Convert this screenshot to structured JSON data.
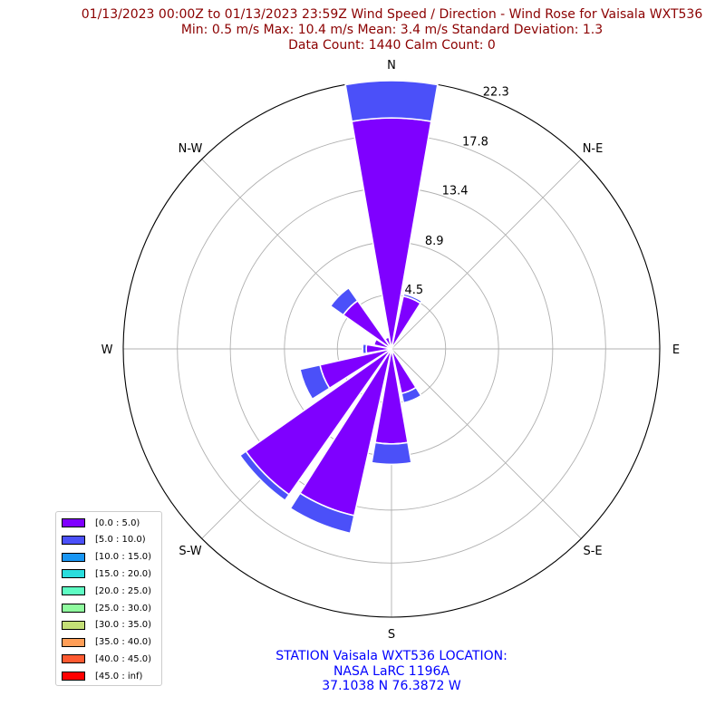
{
  "title": {
    "line1": "01/13/2023 00:00Z to 01/13/2023 23:59Z Wind Speed / Direction - Wind Rose for Vaisala WXT536",
    "line2": "Min: 0.5 m/s   Max: 10.4 m/s   Mean: 3.4 m/s  Standard Deviation: 1.3",
    "line3": "Data Count: 1440  Calm Count:  0"
  },
  "station": {
    "line1": "STATION Vaisala WXT536 LOCATION:",
    "line2": "NASA LaRC 1196A",
    "line3": "37.1038 N 76.3872 W"
  },
  "chart_data": {
    "type": "wind-rose",
    "directions": [
      "N",
      "NNE",
      "NE",
      "ENE",
      "E",
      "ESE",
      "SE",
      "SSE",
      "S",
      "SSW",
      "SW",
      "WSW",
      "W",
      "WNW",
      "NW",
      "NNW"
    ],
    "compass_labels": [
      "N",
      "N-E",
      "E",
      "S-E",
      "S",
      "S-W",
      "W",
      "N-W"
    ],
    "radial_ticks": [
      "4.5",
      "8.9",
      "13.4",
      "17.8",
      "22.3"
    ],
    "r_max": 22.3,
    "series": [
      {
        "name": "[0.0 : 5.0)",
        "color": "#7f00ff",
        "values": [
          19.2,
          4.5,
          0,
          0,
          0,
          0,
          0,
          3.8,
          7.9,
          14.2,
          14.8,
          6.1,
          2.1,
          1.5,
          4.9,
          1.0
        ]
      },
      {
        "name": "[5.0 : 10.0)",
        "color": "#4b50f9",
        "values": [
          3.1,
          0.2,
          0,
          0,
          0,
          0,
          0,
          0.8,
          1.7,
          1.5,
          0.6,
          1.7,
          0.3,
          0,
          1.3,
          0
        ]
      },
      {
        "name": "[10.0 : 15.0)",
        "color": "#1996f3",
        "values": [
          0,
          0,
          0,
          0,
          0,
          0,
          0,
          0,
          0,
          0,
          0,
          0,
          0,
          0,
          0,
          0
        ]
      },
      {
        "name": "[15.0 : 20.0)",
        "color": "#2adddd",
        "values": [
          0,
          0,
          0,
          0,
          0,
          0,
          0,
          0,
          0,
          0,
          0,
          0,
          0,
          0,
          0,
          0
        ]
      },
      {
        "name": "[20.0 : 25.0)",
        "color": "#5efcc3",
        "values": [
          0,
          0,
          0,
          0,
          0,
          0,
          0,
          0,
          0,
          0,
          0,
          0,
          0,
          0,
          0,
          0
        ]
      },
      {
        "name": "[25.0 : 30.0)",
        "color": "#8ffb9e",
        "values": [
          0,
          0,
          0,
          0,
          0,
          0,
          0,
          0,
          0,
          0,
          0,
          0,
          0,
          0,
          0,
          0
        ]
      },
      {
        "name": "[30.0 : 35.0)",
        "color": "#c4df77",
        "values": [
          0,
          0,
          0,
          0,
          0,
          0,
          0,
          0,
          0,
          0,
          0,
          0,
          0,
          0,
          0,
          0
        ]
      },
      {
        "name": "[35.0 : 40.0)",
        "color": "#ff9e57",
        "values": [
          0,
          0,
          0,
          0,
          0,
          0,
          0,
          0,
          0,
          0,
          0,
          0,
          0,
          0,
          0,
          0
        ]
      },
      {
        "name": "[40.0 : 45.0)",
        "color": "#ff5a31",
        "values": [
          0,
          0,
          0,
          0,
          0,
          0,
          0,
          0,
          0,
          0,
          0,
          0,
          0,
          0,
          0,
          0
        ]
      },
      {
        "name": "[45.0 : inf)",
        "color": "#ff0000",
        "values": [
          0,
          0,
          0,
          0,
          0,
          0,
          0,
          0,
          0,
          0,
          0,
          0,
          0,
          0,
          0,
          0
        ]
      }
    ],
    "grid": true,
    "legend_position": "lower-left"
  }
}
